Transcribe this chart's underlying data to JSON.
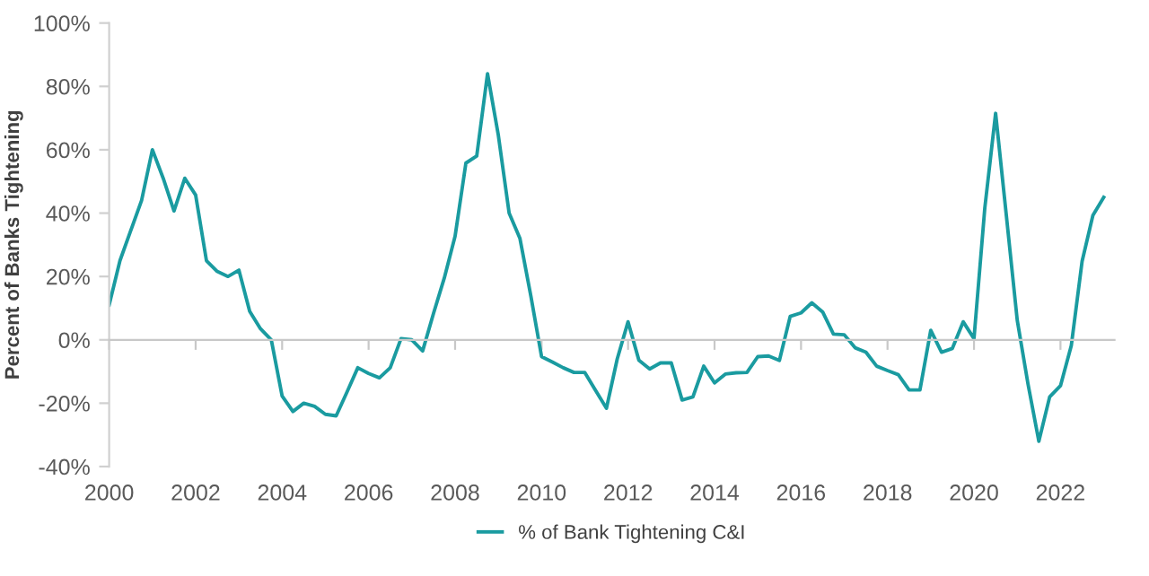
{
  "chart_data": {
    "type": "line",
    "ylabel": "Percent of Banks Tightening",
    "x": [
      2000,
      2000.25,
      2000.5,
      2000.75,
      2001,
      2001.25,
      2001.5,
      2001.75,
      2002,
      2002.25,
      2002.5,
      2002.75,
      2003,
      2003.25,
      2003.5,
      2003.75,
      2004,
      2004.25,
      2004.5,
      2004.75,
      2005,
      2005.25,
      2005.5,
      2005.75,
      2006,
      2006.25,
      2006.5,
      2006.75,
      2007,
      2007.25,
      2007.5,
      2007.75,
      2008,
      2008.25,
      2008.5,
      2008.75,
      2009,
      2009.25,
      2009.5,
      2009.75,
      2010,
      2010.25,
      2010.5,
      2010.75,
      2011,
      2011.25,
      2011.5,
      2011.75,
      2012,
      2012.25,
      2012.5,
      2012.75,
      2013,
      2013.25,
      2013.5,
      2013.75,
      2014,
      2014.25,
      2014.5,
      2014.75,
      2015,
      2015.25,
      2015.5,
      2015.75,
      2016,
      2016.25,
      2016.5,
      2016.75,
      2017,
      2017.25,
      2017.5,
      2017.75,
      2018,
      2018.25,
      2018.5,
      2018.75,
      2019,
      2019.25,
      2019.5,
      2019.75,
      2020,
      2020.25,
      2020.5,
      2020.75,
      2021,
      2021.25,
      2021.5,
      2021.75,
      2022,
      2022.25,
      2022.5,
      2022.75,
      2023
    ],
    "series": [
      {
        "name": "% of Bank Tightening C&I",
        "color": "#1a9ba0",
        "values": [
          11,
          25,
          34.5,
          44,
          60,
          51,
          40.7,
          51,
          45.7,
          25,
          21.6,
          20,
          22,
          9,
          3.5,
          0,
          -17.7,
          -22.6,
          -20,
          -21,
          -23.5,
          -24,
          -16.5,
          -8.8,
          -10.6,
          -12,
          -8.8,
          0.4,
          0,
          -3.5,
          8.3,
          19.5,
          32.7,
          55.8,
          58,
          84,
          64.6,
          40,
          32,
          14,
          -5.3,
          -7,
          -8.8,
          -10.3,
          -10.3,
          -16,
          -21.6,
          -6,
          5.7,
          -6.4,
          -9.2,
          -7.3,
          -7.3,
          -19,
          -18,
          -8.3,
          -13.6,
          -10.8,
          -10.4,
          -10.3,
          -5.3,
          -5.1,
          -6.5,
          7.4,
          8.5,
          11.7,
          8.8,
          1.8,
          1.6,
          -2.5,
          -3.9,
          -8.3,
          -9.7,
          -11,
          -15.8,
          -15.8,
          3,
          -3.9,
          -2.7,
          5.7,
          0.4,
          41.6,
          71.5,
          39,
          6.2,
          -14,
          -32,
          -18,
          -14.5,
          -1.8,
          24.8,
          39.3,
          45
        ]
      }
    ],
    "xlim": [
      2000,
      2023.25
    ],
    "xticks": [
      2000,
      2002,
      2004,
      2006,
      2008,
      2010,
      2012,
      2014,
      2016,
      2018,
      2020,
      2022
    ],
    "ylim": [
      -40,
      100
    ],
    "yticks": [
      {
        "value": -40,
        "label": "-40%"
      },
      {
        "value": -20,
        "label": "-20%"
      },
      {
        "value": 0,
        "label": "0%"
      },
      {
        "value": 20,
        "label": "20%"
      },
      {
        "value": 40,
        "label": "40%"
      },
      {
        "value": 60,
        "label": "60%"
      },
      {
        "value": 80,
        "label": "80%"
      },
      {
        "value": 100,
        "label": "100%"
      }
    ],
    "legend": "bottom",
    "marker": "none",
    "line_style": "solid"
  }
}
